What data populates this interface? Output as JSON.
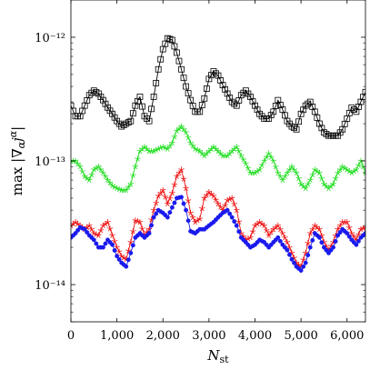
{
  "chart_data": {
    "type": "line",
    "xlabel": "N_st",
    "ylabel": "max |∇_α j^α|",
    "xlim": [
      0,
      6400
    ],
    "ylim": [
      5e-15,
      2e-12
    ],
    "yscale": "log",
    "grid": false,
    "x_ticks": [
      0,
      1000,
      2000,
      3000,
      4000,
      5000,
      6000
    ],
    "x_tick_labels": [
      "0",
      "1,000",
      "2,000",
      "3,000",
      "4,000",
      "5,000",
      "6,000"
    ],
    "y_ticks": [
      1e-14,
      1e-13,
      1e-12
    ],
    "y_tick_labels": [
      "10⁻¹⁴",
      "10⁻¹³",
      "10⁻¹²"
    ],
    "series": [
      {
        "color": "#000000",
        "marker": "square",
        "x": [
          0,
          100,
          200,
          300,
          400,
          500,
          600,
          700,
          800,
          900,
          1000,
          1100,
          1200,
          1300,
          1400,
          1500,
          1600,
          1700,
          1800,
          1900,
          2000,
          2100,
          2200,
          2300,
          2400,
          2500,
          2600,
          2700,
          2800,
          2900,
          3000,
          3100,
          3200,
          3300,
          3400,
          3500,
          3600,
          3700,
          3800,
          3900,
          4000,
          4100,
          4200,
          4300,
          4400,
          4500,
          4600,
          4700,
          4800,
          4900,
          5000,
          5100,
          5200,
          5300,
          5400,
          5500,
          5600,
          5700,
          5800,
          5900,
          6000,
          6100,
          6200,
          6300,
          6400
        ],
        "y": [
          2.8e-13,
          2.3e-13,
          2.3e-13,
          2.8e-13,
          3.4e-13,
          3.7e-13,
          3.5e-13,
          3.1e-13,
          2.7e-13,
          2.4e-13,
          2.1e-13,
          1.9e-13,
          2e-13,
          2.1e-13,
          2.8e-13,
          3.3e-13,
          2.3e-13,
          2.1e-13,
          3.3e-13,
          5.5e-13,
          8e-13,
          9.8e-13,
          9.5e-13,
          7.5e-13,
          5.5e-13,
          4e-13,
          3.1e-13,
          2.5e-13,
          2.5e-13,
          3.2e-13,
          4.6e-13,
          5.3e-13,
          4.9e-13,
          4.1e-13,
          3.5e-13,
          3e-13,
          2.8e-13,
          3.4e-13,
          3.7e-13,
          3.3e-13,
          2.8e-13,
          2.4e-13,
          2.2e-13,
          2.2e-13,
          2.5e-13,
          3.1e-13,
          2.6e-13,
          2.1e-13,
          1.9e-13,
          1.8e-13,
          2.4e-13,
          2.8e-13,
          3e-13,
          2.5e-13,
          2e-13,
          1.7e-13,
          1.6e-13,
          1.6e-13,
          1.6e-13,
          1.8e-13,
          2.2e-13,
          2.7e-13,
          2.5e-13,
          3e-13,
          3.6e-13
        ]
      },
      {
        "color": "#22dd22",
        "marker": "star",
        "x": [
          0,
          100,
          200,
          300,
          400,
          500,
          600,
          700,
          800,
          900,
          1000,
          1100,
          1200,
          1300,
          1400,
          1500,
          1600,
          1700,
          1800,
          1900,
          2000,
          2100,
          2200,
          2300,
          2400,
          2500,
          2600,
          2700,
          2800,
          2900,
          3000,
          3100,
          3200,
          3300,
          3400,
          3500,
          3600,
          3700,
          3800,
          3900,
          4000,
          4100,
          4200,
          4300,
          4400,
          4500,
          4600,
          4700,
          4800,
          4900,
          5000,
          5100,
          5200,
          5300,
          5400,
          5500,
          5600,
          5700,
          5800,
          5900,
          6000,
          6100,
          6200,
          6300,
          6400
        ],
        "y": [
          1e-13,
          1e-13,
          9e-14,
          7.5e-14,
          7e-14,
          8.5e-14,
          9e-14,
          8e-14,
          7e-14,
          6.3e-14,
          6e-14,
          5.8e-14,
          5.8e-14,
          6.5e-14,
          9e-14,
          1.2e-13,
          1.3e-13,
          1.2e-13,
          1.2e-13,
          1.25e-13,
          1.3e-13,
          1.25e-13,
          1.4e-13,
          1.75e-13,
          1.9e-13,
          1.7e-13,
          1.4e-13,
          1.25e-13,
          1.2e-13,
          1.1e-13,
          1.2e-13,
          1.3e-13,
          1.2e-13,
          1.1e-13,
          1.1e-13,
          1.2e-13,
          1.3e-13,
          1.1e-13,
          9.5e-14,
          8e-14,
          8e-14,
          8.5e-14,
          1e-13,
          1.15e-13,
          1e-13,
          8e-14,
          7e-14,
          8e-14,
          9e-14,
          8e-14,
          6.5e-14,
          6e-14,
          7e-14,
          8.5e-14,
          8e-14,
          6.5e-14,
          6e-14,
          6.5e-14,
          8e-14,
          9e-14,
          8.5e-14,
          8e-14,
          8.5e-14,
          1e-13,
          8e-14
        ]
      },
      {
        "color": "#ee1111",
        "marker": "star",
        "x": [
          0,
          100,
          200,
          300,
          400,
          500,
          600,
          700,
          800,
          900,
          1000,
          1100,
          1200,
          1300,
          1400,
          1500,
          1600,
          1700,
          1800,
          1900,
          2000,
          2100,
          2200,
          2300,
          2400,
          2500,
          2600,
          2700,
          2800,
          2900,
          3000,
          3100,
          3200,
          3300,
          3400,
          3500,
          3600,
          3700,
          3800,
          3900,
          4000,
          4100,
          4200,
          4300,
          4400,
          4500,
          4600,
          4700,
          4800,
          4900,
          5000,
          5100,
          5200,
          5300,
          5400,
          5500,
          5600,
          5700,
          5800,
          5900,
          6000,
          6100,
          6200,
          6300,
          6400
        ],
        "y": [
          3e-14,
          3.2e-14,
          3e-14,
          2.8e-14,
          3e-14,
          2.6e-14,
          2.5e-14,
          3e-14,
          3.2e-14,
          2.5e-14,
          2e-14,
          1.7e-14,
          1.6e-14,
          2.2e-14,
          3.3e-14,
          3.2e-14,
          2.5e-14,
          2.8e-14,
          4e-14,
          5.2e-14,
          5.8e-14,
          4.5e-14,
          5.5e-14,
          7.5e-14,
          8.5e-14,
          6e-14,
          3.8e-14,
          3.2e-14,
          3.4e-14,
          5e-14,
          5.6e-14,
          5.2e-14,
          4.5e-14,
          4e-14,
          4.8e-14,
          5e-14,
          4e-14,
          2.6e-14,
          2.3e-14,
          2.4e-14,
          3e-14,
          3.2e-14,
          3e-14,
          2.5e-14,
          2.8e-14,
          3e-14,
          2.6e-14,
          2.2e-14,
          1.8e-14,
          1.5e-14,
          1.4e-14,
          1.8e-14,
          2.6e-14,
          3e-14,
          2.8e-14,
          2.2e-14,
          1.9e-14,
          2.2e-14,
          2.8e-14,
          3.2e-14,
          3.2e-14,
          2.6e-14,
          2.3e-14,
          2.8e-14,
          2.9e-14
        ]
      },
      {
        "color": "#1a1aee",
        "marker": "circle",
        "x": [
          0,
          100,
          200,
          300,
          400,
          500,
          600,
          700,
          800,
          900,
          1000,
          1100,
          1200,
          1300,
          1400,
          1500,
          1600,
          1700,
          1800,
          1900,
          2000,
          2100,
          2200,
          2300,
          2400,
          2500,
          2600,
          2700,
          2800,
          2900,
          3000,
          3100,
          3200,
          3300,
          3400,
          3500,
          3600,
          3700,
          3800,
          3900,
          4000,
          4100,
          4200,
          4300,
          4400,
          4500,
          4600,
          4700,
          4800,
          4900,
          5000,
          5100,
          5200,
          5300,
          5400,
          5500,
          5600,
          5700,
          5800,
          5900,
          6000,
          6100,
          6200,
          6300,
          6400
        ],
        "y": [
          2.4e-14,
          2.6e-14,
          2.9e-14,
          2.8e-14,
          2.5e-14,
          2.3e-14,
          2e-14,
          2e-14,
          2.3e-14,
          2.1e-14,
          1.7e-14,
          1.5e-14,
          1.4e-14,
          1.8e-14,
          2.4e-14,
          2.6e-14,
          2.4e-14,
          2.6e-14,
          3.5e-14,
          4e-14,
          3.8e-14,
          3.5e-14,
          4.2e-14,
          5e-14,
          5.1e-14,
          4e-14,
          2.7e-14,
          2.6e-14,
          2.8e-14,
          2.8e-14,
          3e-14,
          3.2e-14,
          3.5e-14,
          3.8e-14,
          4e-14,
          3.5e-14,
          3e-14,
          2.4e-14,
          2.2e-14,
          2e-14,
          2.1e-14,
          2.3e-14,
          2.2e-14,
          2e-14,
          2.2e-14,
          2.4e-14,
          2.1e-14,
          1.9e-14,
          1.6e-14,
          1.4e-14,
          1.3e-14,
          1.5e-14,
          2e-14,
          2.6e-14,
          2.4e-14,
          2e-14,
          1.8e-14,
          2e-14,
          2.5e-14,
          2.8e-14,
          2.6e-14,
          2.3e-14,
          2.1e-14,
          2.4e-14,
          2.6e-14
        ]
      }
    ]
  }
}
